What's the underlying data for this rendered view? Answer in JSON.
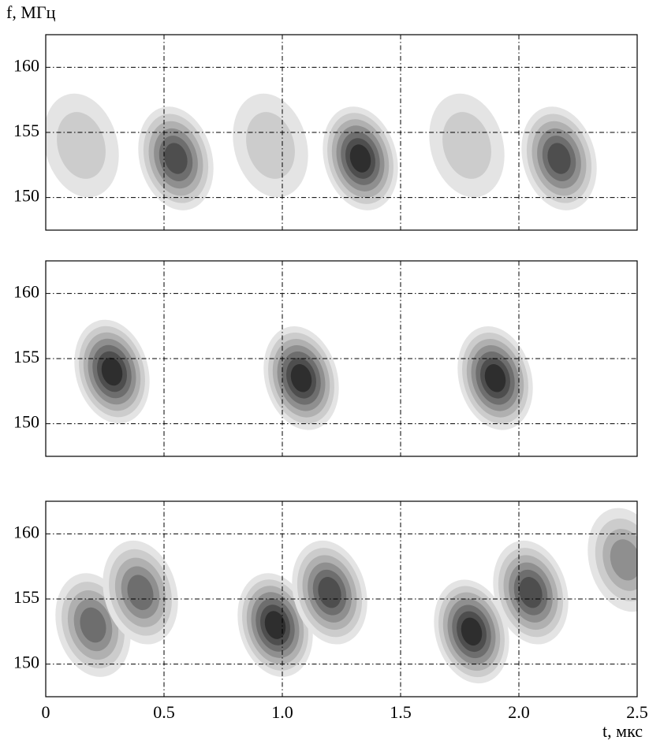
{
  "chart_data": [
    {
      "type": "contour",
      "ylabel": "f, МГц",
      "xlim": [
        0,
        2.5
      ],
      "ylim": [
        147.5,
        162.5
      ],
      "xticks": [
        0.5,
        1,
        1.5,
        2
      ],
      "yticks": [
        150,
        155,
        160
      ],
      "grid": true,
      "peaks": {
        "x": [
          0.15,
          0.55,
          0.95,
          1.33,
          1.78,
          2.17
        ],
        "y": [
          154,
          153,
          154,
          153,
          154,
          153
        ],
        "levels": [
          2,
          6,
          2,
          7,
          2,
          6
        ]
      }
    },
    {
      "type": "contour",
      "xlim": [
        0,
        2.5
      ],
      "ylim": [
        147.5,
        162.5
      ],
      "xticks": [
        0.5,
        1,
        1.5,
        2
      ],
      "yticks": [
        150,
        155,
        160
      ],
      "grid": true,
      "peaks": {
        "x": [
          0.28,
          1.08,
          1.9
        ],
        "y": [
          154,
          153.5,
          153.5
        ],
        "levels": [
          7,
          7,
          7
        ]
      }
    },
    {
      "type": "contour",
      "xlabel": "t, мкс",
      "xlim": [
        0,
        2.5
      ],
      "ylim": [
        147.5,
        162.5
      ],
      "xticks": [
        0,
        0.5,
        {
          "value": 1,
          "label": "1.0"
        },
        1.5,
        {
          "value": 2,
          "label": "2.0"
        },
        2.5
      ],
      "yticks": [
        150,
        155,
        160
      ],
      "grid": true,
      "peaks": {
        "x": [
          0.2,
          0.4,
          0.97,
          1.2,
          1.8,
          2.05,
          2.45
        ],
        "y": [
          153,
          155.5,
          153,
          155.5,
          152.5,
          155.5,
          158
        ],
        "levels": [
          5,
          5,
          7,
          6,
          7,
          6,
          4
        ]
      }
    }
  ]
}
